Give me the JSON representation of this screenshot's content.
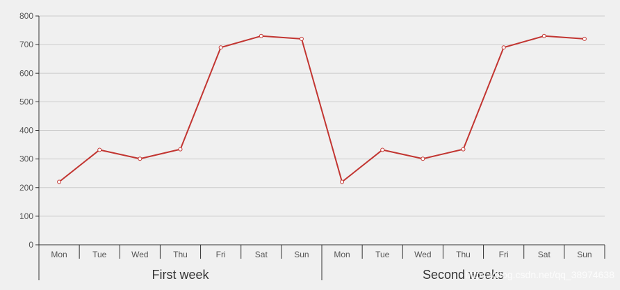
{
  "chart_data": {
    "type": "line",
    "categories": [
      "Mon",
      "Tue",
      "Wed",
      "Thu",
      "Fri",
      "Sat",
      "Sun",
      "Mon",
      "Tue",
      "Wed",
      "Thu",
      "Fri",
      "Sat",
      "Sun"
    ],
    "groups": [
      {
        "label": "First week",
        "span": 7
      },
      {
        "label": "Second weeks",
        "span": 7
      }
    ],
    "series": [
      {
        "values": [
          220,
          332,
          301,
          334,
          690,
          730,
          720,
          220,
          332,
          301,
          334,
          690,
          730,
          720
        ]
      }
    ],
    "ylim": [
      0,
      800
    ],
    "yticks": [
      0,
      100,
      200,
      300,
      400,
      500,
      600,
      700,
      800
    ],
    "grid": true,
    "line_color": "#c23531",
    "grid_color": "#cccccc",
    "axis_color": "#333333"
  },
  "watermark": "https://blog.csdn.net/qq_38974638"
}
